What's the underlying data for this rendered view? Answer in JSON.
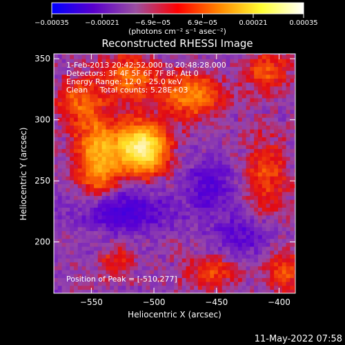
{
  "chart_data": {
    "type": "heatmap",
    "title": "Reconstructed RHESSI Image",
    "xlabel": "Heliocentric X (arcsec)",
    "ylabel": "Heliocentric Y (arcsec)",
    "xlim": [
      -580,
      -387
    ],
    "ylim": [
      158,
      354
    ],
    "x_ticks": [
      -550,
      -500,
      -450,
      -400
    ],
    "y_ticks": [
      200,
      250,
      300,
      350
    ],
    "x_tick_labels": [
      "−550",
      "−500",
      "−450",
      "−400"
    ],
    "y_tick_labels": [
      "200",
      "250",
      "300",
      "350"
    ],
    "colorbar": {
      "range": [
        -0.00035,
        0.00035
      ],
      "ticks": [
        -0.00035,
        -0.00021,
        -6.9e-05,
        6.9e-05,
        0.00021,
        0.00035
      ],
      "tick_labels": [
        "−0.00035",
        "−0.00021",
        "−6.9e−05",
        "6.9e−05",
        "0.00021",
        "0.00035"
      ],
      "unit": "(photons cm⁻² s⁻¹ asec⁻²)",
      "colors": [
        "#0000ff",
        "#5a00cc",
        "#9a4fa0",
        "#ff0000",
        "#ff8800",
        "#ffff33",
        "#ffffff"
      ]
    },
    "annotations": [
      "1-Feb-2013 20:42:52.000 to 20:48:28.000",
      "Detectors: 3F 4F 5F 6F 7F 8F, Att 0",
      "Energy Range: 12.0 - 25.0 keV",
      "Clean     Total counts: 5.28E+03",
      "Position of Peak = [-510,277]"
    ],
    "peak": {
      "x": -510,
      "y": 277,
      "value": 0.00035
    },
    "sources": [
      {
        "x": -510,
        "y": 277,
        "sx": 14,
        "sy": 14,
        "amp": 0.00035
      },
      {
        "x": -545,
        "y": 270,
        "sx": 12,
        "sy": 22,
        "amp": 0.00021
      },
      {
        "x": -470,
        "y": 320,
        "sx": 16,
        "sy": 12,
        "amp": 0.00018
      },
      {
        "x": -520,
        "y": 335,
        "sx": 16,
        "sy": 14,
        "amp": 0.00014
      },
      {
        "x": -560,
        "y": 315,
        "sx": 12,
        "sy": 14,
        "amp": 0.00012
      },
      {
        "x": -410,
        "y": 340,
        "sx": 12,
        "sy": 12,
        "amp": 0.00012
      },
      {
        "x": -410,
        "y": 255,
        "sx": 12,
        "sy": 22,
        "amp": 0.0001
      },
      {
        "x": -455,
        "y": 175,
        "sx": 14,
        "sy": 10,
        "amp": 0.0001
      },
      {
        "x": -395,
        "y": 175,
        "sx": 10,
        "sy": 12,
        "amp": 0.00012
      },
      {
        "x": -530,
        "y": 185,
        "sx": 10,
        "sy": 8,
        "amp": 8e-05
      },
      {
        "x": -455,
        "y": 245,
        "sx": 14,
        "sy": 16,
        "amp": -0.0001
      },
      {
        "x": -525,
        "y": 225,
        "sx": 26,
        "sy": 12,
        "amp": -0.00013
      },
      {
        "x": -430,
        "y": 205,
        "sx": 16,
        "sy": 10,
        "amp": -9e-05
      }
    ],
    "grid": false
  },
  "footer": {
    "timestamp": "11-May-2022 07:58"
  }
}
